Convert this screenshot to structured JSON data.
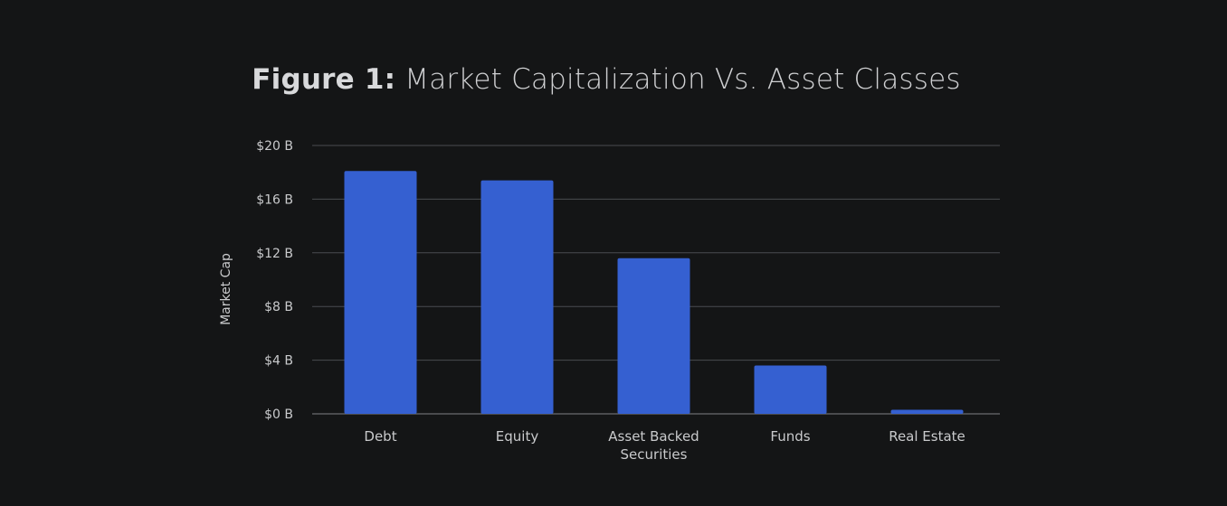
{
  "title": {
    "prefix": "Figure 1:",
    "text": "Market Capitalization Vs. Asset Classes"
  },
  "colors": {
    "background": "#141516",
    "bar": "#3560d1",
    "grid": "#4a4c50",
    "text": "#c9cacc"
  },
  "chart_data": {
    "type": "bar",
    "title": "Figure 1: Market Capitalization Vs. Asset Classes",
    "categories": [
      "Debt",
      "Equity",
      "Asset Backed Securities",
      "Funds",
      "Real Estate"
    ],
    "category_label_lines": [
      [
        "Debt"
      ],
      [
        "Equity"
      ],
      [
        "Asset Backed",
        "Securities"
      ],
      [
        "Funds"
      ],
      [
        "Real Estate"
      ]
    ],
    "values": [
      18.1,
      17.4,
      11.6,
      3.6,
      0.3
    ],
    "value_unit": "$B",
    "xlabel": "",
    "ylabel": "Market Cap",
    "ylim": [
      0,
      20
    ],
    "yticks": [
      0,
      4,
      8,
      12,
      16,
      20
    ],
    "ytick_labels": [
      "$0 B",
      "$4 B",
      "$8 B",
      "$12 B",
      "$16 B",
      "$20 B"
    ],
    "grid": true,
    "legend": false
  }
}
